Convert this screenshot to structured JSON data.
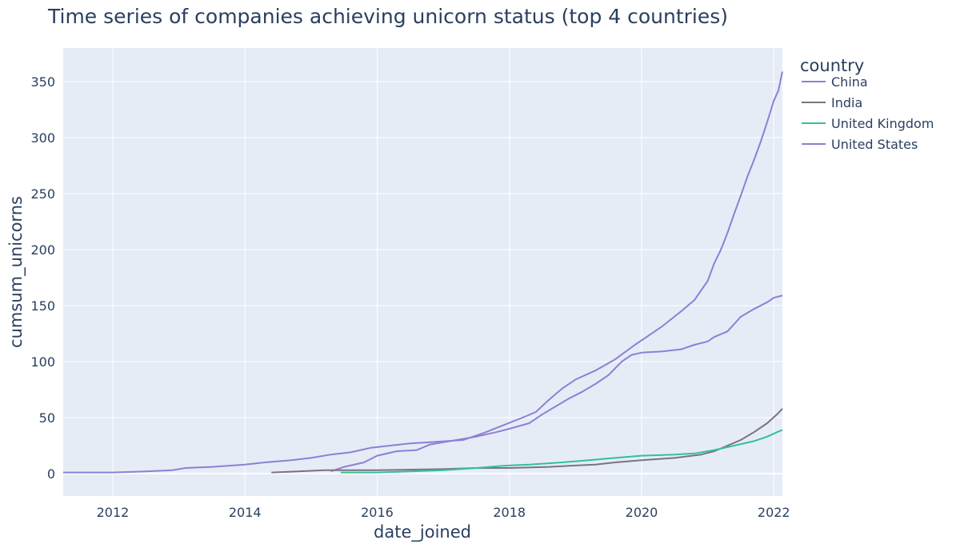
{
  "chart_data": {
    "type": "line",
    "title": "Time series of companies achieving unicorn status (top 4 countries)",
    "xlabel": "date_joined",
    "ylabel": "cumsum_unicorns",
    "xlim": [
      2011.25,
      2022.13
    ],
    "ylim": [
      -20,
      380
    ],
    "x_ticks": [
      2012,
      2014,
      2016,
      2018,
      2020,
      2022
    ],
    "y_ticks": [
      0,
      50,
      100,
      150,
      200,
      250,
      300,
      350
    ],
    "grid": true,
    "legend_title": "country",
    "legend_position": "right",
    "series": [
      {
        "name": "China",
        "color": "#8e7fd6",
        "points": [
          [
            2015.3,
            2
          ],
          [
            2015.5,
            6
          ],
          [
            2015.8,
            10
          ],
          [
            2016.0,
            16
          ],
          [
            2016.3,
            20
          ],
          [
            2016.6,
            21
          ],
          [
            2016.8,
            26
          ],
          [
            2017.2,
            30
          ],
          [
            2017.5,
            33
          ],
          [
            2017.8,
            37
          ],
          [
            2018.0,
            40
          ],
          [
            2018.3,
            45
          ],
          [
            2018.5,
            53
          ],
          [
            2018.7,
            60
          ],
          [
            2018.9,
            67
          ],
          [
            2019.1,
            73
          ],
          [
            2019.3,
            80
          ],
          [
            2019.5,
            88
          ],
          [
            2019.7,
            100
          ],
          [
            2019.85,
            106
          ],
          [
            2020.0,
            108
          ],
          [
            2020.3,
            109
          ],
          [
            2020.6,
            111
          ],
          [
            2020.8,
            115
          ],
          [
            2021.0,
            118
          ],
          [
            2021.1,
            122
          ],
          [
            2021.3,
            127
          ],
          [
            2021.5,
            140
          ],
          [
            2021.7,
            147
          ],
          [
            2021.9,
            153
          ],
          [
            2022.0,
            157
          ],
          [
            2022.13,
            159
          ]
        ]
      },
      {
        "name": "India",
        "color": "#7a7380",
        "points": [
          [
            2014.4,
            1
          ],
          [
            2014.8,
            2
          ],
          [
            2015.2,
            3
          ],
          [
            2016.0,
            3
          ],
          [
            2017.0,
            4
          ],
          [
            2017.5,
            5
          ],
          [
            2018.0,
            5
          ],
          [
            2018.6,
            6
          ],
          [
            2018.9,
            7
          ],
          [
            2019.3,
            8
          ],
          [
            2019.6,
            10
          ],
          [
            2020.0,
            12
          ],
          [
            2020.5,
            14
          ],
          [
            2020.9,
            17
          ],
          [
            2021.1,
            20
          ],
          [
            2021.3,
            25
          ],
          [
            2021.5,
            30
          ],
          [
            2021.7,
            37
          ],
          [
            2021.9,
            45
          ],
          [
            2022.05,
            53
          ],
          [
            2022.13,
            58
          ]
        ]
      },
      {
        "name": "United Kingdom",
        "color": "#34bf9b",
        "points": [
          [
            2015.45,
            1
          ],
          [
            2016.0,
            1
          ],
          [
            2016.5,
            2
          ],
          [
            2017.0,
            3
          ],
          [
            2017.5,
            5
          ],
          [
            2017.9,
            7
          ],
          [
            2018.3,
            8
          ],
          [
            2018.8,
            10
          ],
          [
            2019.2,
            12
          ],
          [
            2019.6,
            14
          ],
          [
            2020.0,
            16
          ],
          [
            2020.5,
            17
          ],
          [
            2020.8,
            18
          ],
          [
            2021.1,
            21
          ],
          [
            2021.4,
            25
          ],
          [
            2021.7,
            29
          ],
          [
            2021.9,
            33
          ],
          [
            2022.05,
            37
          ],
          [
            2022.13,
            39
          ]
        ]
      },
      {
        "name": "United States",
        "color": "#8e7fd6",
        "points": [
          [
            2011.25,
            1
          ],
          [
            2012.0,
            1
          ],
          [
            2012.5,
            2
          ],
          [
            2012.9,
            3
          ],
          [
            2013.1,
            5
          ],
          [
            2013.5,
            6
          ],
          [
            2014.0,
            8
          ],
          [
            2014.3,
            10
          ],
          [
            2014.7,
            12
          ],
          [
            2015.0,
            14
          ],
          [
            2015.3,
            17
          ],
          [
            2015.6,
            19
          ],
          [
            2015.9,
            23
          ],
          [
            2016.2,
            25
          ],
          [
            2016.5,
            27
          ],
          [
            2016.8,
            28
          ],
          [
            2017.3,
            30
          ],
          [
            2017.6,
            36
          ],
          [
            2017.9,
            43
          ],
          [
            2018.2,
            50
          ],
          [
            2018.4,
            55
          ],
          [
            2018.6,
            66
          ],
          [
            2018.8,
            76
          ],
          [
            2019.0,
            84
          ],
          [
            2019.3,
            92
          ],
          [
            2019.6,
            102
          ],
          [
            2019.9,
            115
          ],
          [
            2020.1,
            123
          ],
          [
            2020.3,
            131
          ],
          [
            2020.6,
            145
          ],
          [
            2020.8,
            155
          ],
          [
            2021.0,
            172
          ],
          [
            2021.1,
            188
          ],
          [
            2021.2,
            200
          ],
          [
            2021.3,
            215
          ],
          [
            2021.4,
            232
          ],
          [
            2021.5,
            248
          ],
          [
            2021.6,
            265
          ],
          [
            2021.7,
            280
          ],
          [
            2021.8,
            296
          ],
          [
            2021.9,
            314
          ],
          [
            2022.0,
            333
          ],
          [
            2022.07,
            342
          ],
          [
            2022.13,
            359
          ]
        ]
      }
    ]
  }
}
